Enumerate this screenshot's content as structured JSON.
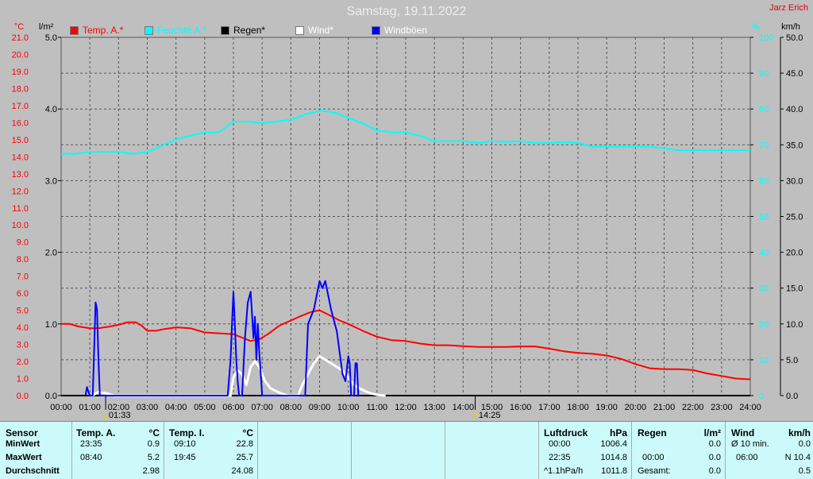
{
  "title": "Samstag, 19.11.2022",
  "station": "Jarz Erich",
  "legend": [
    {
      "label": "Temp. A.*",
      "color": "#ff0000"
    },
    {
      "label": "Feuchte A.*",
      "color": "#00ffff"
    },
    {
      "label": "Regen*",
      "color": "#000000"
    },
    {
      "label": "Wind*",
      "color": "#ffffff"
    },
    {
      "label": "Windböen",
      "color": "#0000ff"
    }
  ],
  "axis_units": {
    "temp": "°C",
    "rain": "l/m²",
    "humidity": "%",
    "wind": "km/h"
  },
  "markers": [
    {
      "label": "01:33",
      "hour": 1.55
    },
    {
      "label": "14:25",
      "hour": 14.42
    }
  ],
  "chart_data": {
    "type": "line",
    "x_ticks": [
      "00:00",
      "01:00",
      "02:00",
      "03:00",
      "04:00",
      "05:00",
      "06:00",
      "07:00",
      "08:00",
      "09:00",
      "10:00",
      "11:00",
      "12:00",
      "13:00",
      "14:00",
      "15:00",
      "16:00",
      "17:00",
      "18:00",
      "19:00",
      "20:00",
      "21:00",
      "22:00",
      "23:00",
      "24:00"
    ],
    "xlim": [
      0,
      24
    ],
    "grid": true,
    "y_axes": {
      "temp": {
        "label": "°C",
        "range": [
          0,
          21
        ],
        "ticks": [
          "0.0",
          "1.0",
          "2.0",
          "3.0",
          "4.0",
          "5.0",
          "6.0",
          "7.0",
          "8.0",
          "9.0",
          "10.0",
          "11.0",
          "12.0",
          "13.0",
          "14.0",
          "15.0",
          "16.0",
          "17.0",
          "18.0",
          "19.0",
          "20.0",
          "21.0"
        ]
      },
      "rain": {
        "label": "l/m²",
        "range": [
          0,
          5
        ],
        "ticks": [
          "0.0",
          "1.0",
          "2.0",
          "3.0",
          "4.0",
          "5.0"
        ]
      },
      "humidity": {
        "label": "%",
        "range": [
          0,
          100
        ],
        "ticks": [
          "0",
          "10",
          "20",
          "30",
          "40",
          "50",
          "60",
          "70",
          "80",
          "90",
          "100"
        ]
      },
      "wind": {
        "label": "km/h",
        "range": [
          0,
          50
        ],
        "ticks": [
          "0.0",
          "5.0",
          "10.0",
          "15.0",
          "20.0",
          "25.0",
          "30.0",
          "35.0",
          "40.0",
          "45.0",
          "50.0"
        ]
      }
    },
    "series": [
      {
        "name": "Temp. A.*",
        "axis": "temp",
        "color": "#ff0000",
        "x": [
          0,
          0.3,
          0.6,
          1,
          1.3,
          1.7,
          2,
          2.3,
          2.6,
          2.8,
          3,
          3.3,
          3.6,
          4,
          4.5,
          5,
          5.5,
          6,
          6.3,
          6.6,
          6.9,
          7.2,
          7.6,
          8,
          8.4,
          8.7,
          9,
          9.3,
          9.7,
          10,
          10.5,
          11,
          11.5,
          12,
          12.5,
          13,
          13.5,
          14,
          14.5,
          15,
          15.5,
          16,
          16.5,
          17,
          17.5,
          18,
          18.5,
          19,
          19.5,
          20,
          20.5,
          21,
          21.5,
          22,
          22.5,
          23,
          23.5,
          24
        ],
        "y": [
          4.2,
          4.2,
          4.05,
          3.95,
          3.95,
          4.05,
          4.15,
          4.3,
          4.3,
          4.1,
          3.8,
          3.8,
          3.9,
          4.0,
          3.95,
          3.7,
          3.65,
          3.6,
          3.4,
          3.2,
          3.3,
          3.6,
          4.1,
          4.4,
          4.7,
          4.9,
          5.0,
          4.75,
          4.4,
          4.2,
          3.8,
          3.45,
          3.25,
          3.2,
          3.05,
          2.95,
          2.95,
          2.9,
          2.85,
          2.85,
          2.85,
          2.88,
          2.88,
          2.75,
          2.6,
          2.5,
          2.45,
          2.35,
          2.15,
          1.85,
          1.6,
          1.55,
          1.55,
          1.5,
          1.3,
          1.15,
          1.0,
          0.95
        ]
      },
      {
        "name": "Feuchte A.*",
        "axis": "humidity",
        "color": "#00ffff",
        "x": [
          0,
          0.5,
          1,
          1.5,
          2,
          2.5,
          3,
          3.3,
          3.6,
          4,
          4.5,
          5,
          5.5,
          6,
          6.5,
          7,
          7.5,
          8,
          8.5,
          9,
          9.3,
          9.6,
          10,
          10.5,
          11,
          11.5,
          12,
          12.5,
          13,
          13.5,
          14,
          14.5,
          15,
          15.5,
          16,
          16.5,
          17,
          17.5,
          18,
          18.5,
          19,
          19.5,
          20,
          20.5,
          21,
          21.5,
          22,
          22.5,
          23,
          23.5,
          24
        ],
        "y": [
          67.5,
          67.5,
          68,
          68,
          68,
          67.5,
          68,
          69,
          70,
          71.5,
          72.5,
          73.5,
          73.5,
          76.5,
          76.5,
          76,
          76.5,
          77,
          78.5,
          79.5,
          79.3,
          78.8,
          77.5,
          76,
          74,
          73.5,
          73.5,
          72.5,
          71,
          71,
          71,
          70.5,
          71,
          70.8,
          71,
          70.5,
          70.5,
          70.8,
          70.5,
          69.5,
          69.5,
          69.5,
          69.5,
          69.5,
          69,
          68.5,
          68.5,
          68.5,
          68.5,
          68.5,
          68.5
        ]
      },
      {
        "name": "Regen*",
        "axis": "rain",
        "color": "#000000",
        "x": [
          0,
          24
        ],
        "y": [
          0,
          0
        ]
      },
      {
        "name": "Wind*",
        "axis": "wind",
        "color": "#ffffff",
        "x": [
          1.1,
          1.2,
          1.3,
          1.4,
          1.6,
          1.75,
          1.85,
          5.9,
          6.0,
          6.15,
          6.3,
          6.45,
          6.6,
          6.75,
          6.9,
          7.1,
          7.3,
          7.6,
          7.9,
          8.25,
          8.3,
          8.4,
          8.6,
          8.8,
          9.0,
          9.2,
          9.4,
          9.6,
          9.8,
          10.0,
          10.2,
          10.4,
          10.6,
          10.8,
          11.0,
          11.3
        ],
        "y": [
          0,
          0.3,
          0.5,
          0.4,
          0.3,
          0.1,
          0,
          0,
          2.5,
          3.5,
          3.0,
          1.5,
          4.0,
          4.8,
          4.0,
          2.0,
          1.0,
          0.4,
          0,
          0,
          0.5,
          1.5,
          3.0,
          4.5,
          5.5,
          5.0,
          4.5,
          4.0,
          3.5,
          2.5,
          1.5,
          1.0,
          0.6,
          0.3,
          0.1,
          0
        ]
      },
      {
        "name": "Windböen",
        "axis": "wind",
        "color": "#0000ff",
        "x": [
          0.85,
          0.9,
          0.95,
          1.0,
          1.1,
          1.2,
          1.25,
          1.3,
          1.35,
          1.4,
          5.8,
          5.9,
          5.95,
          6.0,
          6.05,
          6.1,
          6.15,
          6.2,
          6.3,
          6.4,
          6.5,
          6.6,
          6.7,
          6.75,
          6.8,
          6.85,
          6.9,
          6.95,
          7.0,
          7.05,
          7.1,
          8.5,
          8.6,
          8.8,
          9.0,
          9.1,
          9.2,
          9.4,
          9.6,
          9.7,
          9.8,
          9.9,
          10.0,
          10.05,
          10.1,
          10.2,
          10.25,
          10.3,
          10.35
        ],
        "y": [
          0,
          1.2,
          0.5,
          0,
          0,
          13,
          12,
          5,
          0,
          0,
          0,
          5,
          10,
          14.5,
          10,
          5,
          2,
          0,
          0,
          8,
          13,
          14.5,
          8,
          11,
          5,
          10,
          6,
          3,
          0,
          0,
          0,
          0,
          10,
          12,
          16,
          15,
          16,
          12,
          9,
          6,
          3,
          2,
          5.5,
          4.5,
          0,
          0,
          4.5,
          4.5,
          0
        ]
      }
    ]
  },
  "table": {
    "sensor": {
      "header": "Sensor",
      "rows": [
        "MinWert",
        "MaxWert",
        "Durchschnitt"
      ]
    },
    "temp_a": {
      "header": "Temp. A.",
      "unit": "°C",
      "times": [
        "23:35",
        "08:40",
        ""
      ],
      "values": [
        "0.9",
        "5.2",
        "2.98"
      ]
    },
    "temp_i": {
      "header": "Temp. I.",
      "unit": "°C",
      "times": [
        "09:10",
        "19:45",
        ""
      ],
      "values": [
        "22.8",
        "25.7",
        "24.08"
      ]
    },
    "pressure": {
      "header": "Luftdruck",
      "unit": "hPa",
      "times": [
        "00:00",
        "22:35",
        "^1.1hPa/h"
      ],
      "values": [
        "1006.4",
        "1014.8",
        "1011.8"
      ]
    },
    "rain": {
      "header": "Regen",
      "unit": "l/m²",
      "times": [
        "",
        "00:00",
        "Gesamt:"
      ],
      "values": [
        "0.0",
        "0.0",
        "0.0"
      ]
    },
    "wind": {
      "header": "Wind",
      "unit": "km/h",
      "times": [
        "Ø 10 min.",
        "06:00",
        ""
      ],
      "values": [
        "0.0",
        "N 10.4",
        "0.5"
      ]
    }
  }
}
